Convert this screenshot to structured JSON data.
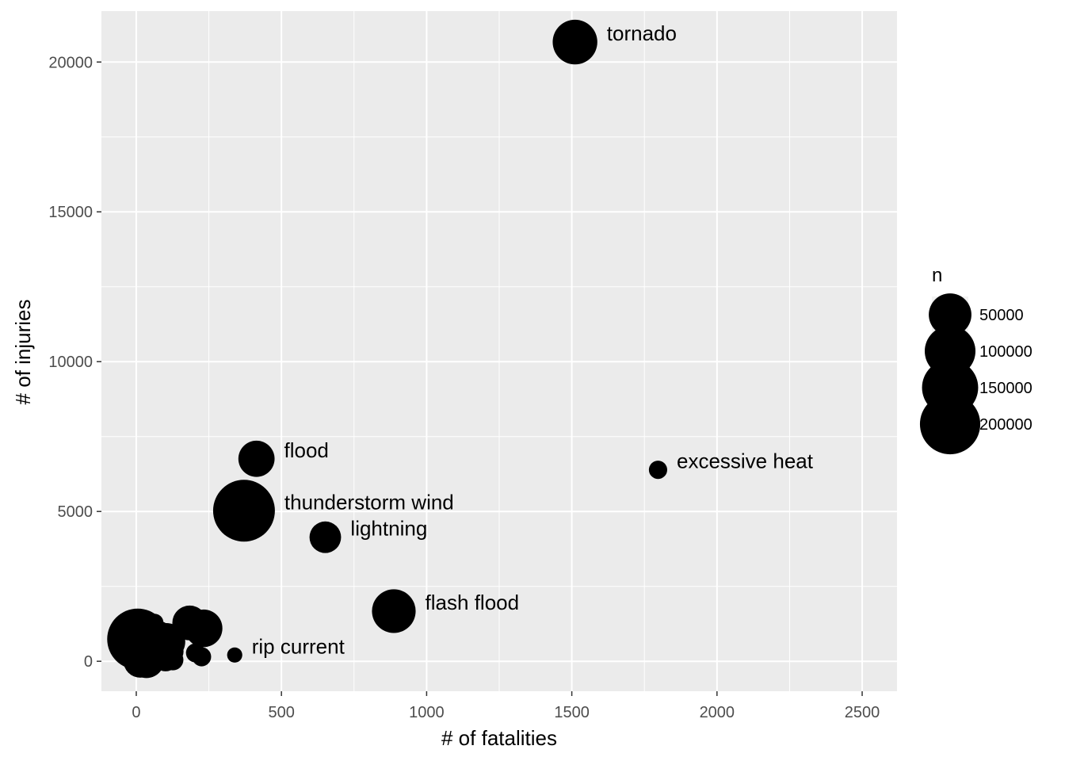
{
  "chart_data": {
    "type": "scatter",
    "xlabel": "# of fatalities",
    "ylabel": "# of injuries",
    "xlim": [
      -120,
      2620
    ],
    "ylim": [
      -1000,
      21700
    ],
    "x_ticks": [
      0,
      500,
      1000,
      1500,
      2000,
      2500
    ],
    "y_ticks": [
      0,
      5000,
      10000,
      15000,
      20000
    ],
    "grid": true,
    "size_legend": {
      "title": "n",
      "placement": "right",
      "entries": [
        {
          "label": "50000",
          "value": 50000
        },
        {
          "label": "100000",
          "value": 100000
        },
        {
          "label": "150000",
          "value": 150000
        },
        {
          "label": "200000",
          "value": 200000
        }
      ]
    },
    "labeled_points": [
      {
        "label": "tornado",
        "x": 1511,
        "y": 20667,
        "n": 60000
      },
      {
        "label": "excessive heat",
        "x": 1797,
        "y": 6391,
        "n": 1700
      },
      {
        "label": "flood",
        "x": 414,
        "y": 6758,
        "n": 26000
      },
      {
        "label": "thunderstorm wind",
        "x": 371,
        "y": 5025,
        "n": 220000
      },
      {
        "label": "lightning",
        "x": 651,
        "y": 4140,
        "n": 15000
      },
      {
        "label": "flash flood",
        "x": 887,
        "y": 1674,
        "n": 55000
      },
      {
        "label": "rip current",
        "x": 339,
        "y": 209,
        "n": 800
      }
    ],
    "unlabeled_points": [
      {
        "x": 5,
        "y": 740,
        "n": 210000
      },
      {
        "x": 63,
        "y": 1290,
        "n": 1500
      },
      {
        "x": 76,
        "y": 900,
        "n": 8000
      },
      {
        "x": 57,
        "y": 500,
        "n": 4000
      },
      {
        "x": 70,
        "y": 330,
        "n": 9000
      },
      {
        "x": 84,
        "y": 230,
        "n": 5000
      },
      {
        "x": 104,
        "y": 650,
        "n": 30000
      },
      {
        "x": 115,
        "y": 330,
        "n": 9000
      },
      {
        "x": 101,
        "y": 100,
        "n": 7000
      },
      {
        "x": 126,
        "y": 50,
        "n": 3000
      },
      {
        "x": 40,
        "y": 100,
        "n": 3000
      },
      {
        "x": 14,
        "y": 20,
        "n": 20000
      },
      {
        "x": 35,
        "y": 40,
        "n": 25000
      },
      {
        "x": 8,
        "y": 240,
        "n": 2000
      },
      {
        "x": 60,
        "y": 30,
        "n": 2000
      },
      {
        "x": 184,
        "y": 1280,
        "n": 22000
      },
      {
        "x": 232,
        "y": 1100,
        "n": 30000
      },
      {
        "x": 204,
        "y": 280,
        "n": 2000
      },
      {
        "x": 225,
        "y": 150,
        "n": 2000
      }
    ]
  }
}
